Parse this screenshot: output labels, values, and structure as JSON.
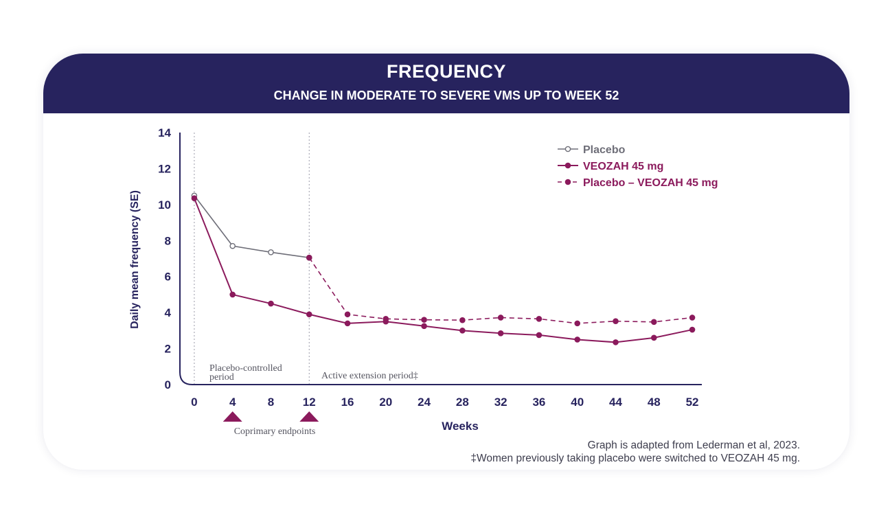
{
  "header": {
    "title": "FREQUENCY",
    "subtitle": "CHANGE IN MODERATE TO SEVERE VMS UP TO WEEK 52"
  },
  "footnotes": {
    "source": "Graph is adapted from Lederman et al, 2023.",
    "switch_note": "‡Women previously taking placebo were switched to VEOZAH 45 mg."
  },
  "annotations": {
    "placebo_period_line1": "Placebo-controlled",
    "placebo_period_line2": "period",
    "active_extension": "Active extension period‡",
    "coprimary": "Coprimary endpoints"
  },
  "colors": {
    "navy": "#27235e",
    "placebo": "#6e6e78",
    "veozah": "#8b1a5c",
    "axis": "#27235e"
  },
  "chart_data": {
    "type": "line",
    "xlabel": "Weeks",
    "ylabel": "Daily mean frequency (SE)",
    "ylim": [
      0,
      14
    ],
    "yticks": [
      0,
      2,
      4,
      6,
      8,
      10,
      12,
      14
    ],
    "xticks": [
      0,
      4,
      8,
      12,
      16,
      20,
      24,
      28,
      32,
      36,
      40,
      44,
      48,
      52
    ],
    "x_range": [
      -1.5,
      53
    ],
    "period_dividers": [
      0,
      12
    ],
    "coprimary_endpoints": [
      4,
      12
    ],
    "legend_position": "top-right",
    "series": [
      {
        "name": "Placebo",
        "style": "solid-open-marker",
        "x": [
          0,
          4,
          8,
          12
        ],
        "y": [
          10.5,
          7.7,
          7.35,
          7.05
        ]
      },
      {
        "name": "VEOZAH 45 mg",
        "style": "solid-filled-marker",
        "x": [
          0,
          4,
          8,
          12,
          16,
          20,
          24,
          28,
          32,
          36,
          40,
          44,
          48,
          52
        ],
        "y": [
          10.35,
          5.0,
          4.5,
          3.9,
          3.4,
          3.5,
          3.25,
          3.0,
          2.85,
          2.75,
          2.5,
          2.35,
          2.6,
          3.05
        ]
      },
      {
        "name": "Placebo – VEOZAH 45 mg",
        "style": "dashed-filled-marker",
        "x": [
          12,
          16,
          20,
          24,
          28,
          32,
          36,
          40,
          44,
          48,
          52
        ],
        "y": [
          7.05,
          3.9,
          3.65,
          3.6,
          3.58,
          3.72,
          3.65,
          3.4,
          3.52,
          3.48,
          3.72
        ]
      }
    ]
  }
}
